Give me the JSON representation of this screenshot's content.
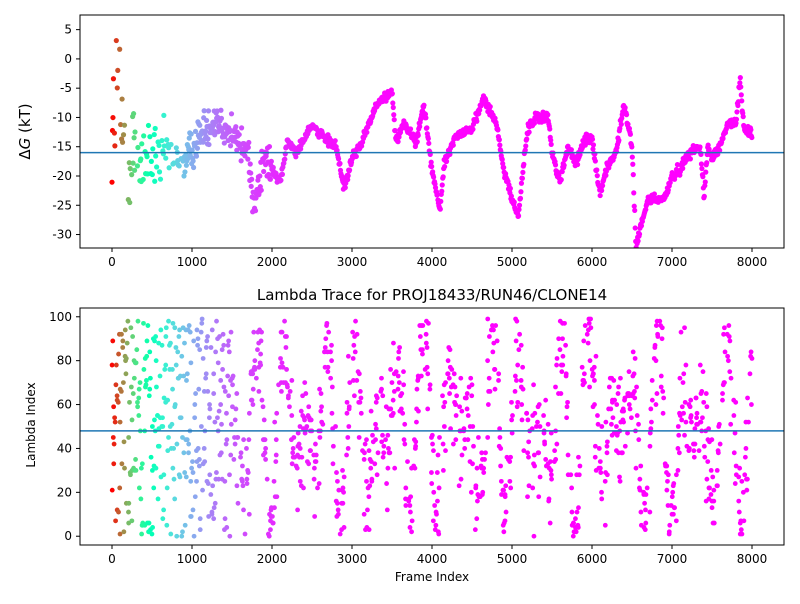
{
  "chart_data": [
    {
      "type": "scatter",
      "title": "",
      "xlabel": "",
      "ylabel": "ΔG (kT)",
      "xlim": [
        -400,
        8400
      ],
      "ylim": [
        -32.3,
        7.5
      ],
      "xticks": [
        0,
        1000,
        2000,
        3000,
        4000,
        5000,
        6000,
        7000,
        8000
      ],
      "yticks": [
        5,
        0,
        -5,
        -10,
        -15,
        -20,
        -25,
        -30
      ],
      "hline": -16,
      "hline_color": "#1f77b4",
      "colormap": "rainbow",
      "color_by": "frame index (late = violet, early = red)",
      "n_frames": 8000,
      "series": [
        {
          "x": [
            0,
            50,
            100,
            200,
            300,
            500,
            700,
            900,
            1100,
            1300,
            1500,
            1700,
            1780,
            1900,
            2100,
            2200,
            2300,
            2500,
            2600,
            2800,
            2900,
            3000,
            3100,
            3300,
            3500,
            3550,
            3650,
            3800,
            3900,
            4000,
            4100,
            4150,
            4300,
            4500,
            4650,
            4800,
            4900,
            5000,
            5080,
            5150,
            5200,
            5300,
            5450,
            5500,
            5600,
            5700,
            5800,
            5900,
            6000,
            6100,
            6200,
            6300,
            6400,
            6500,
            6550,
            6700,
            6800,
            6900,
            7000,
            7100,
            7200,
            7350,
            7400,
            7450,
            7500,
            7600,
            7700,
            7800,
            7850,
            7900,
            8000
          ],
          "y": [
            -10,
            0,
            -10,
            -14,
            -16,
            -17,
            -16,
            -18,
            -13,
            -10,
            -13,
            -16,
            -25,
            -17,
            -21,
            -14,
            -16,
            -11,
            -13,
            -15,
            -22,
            -17,
            -15,
            -8,
            -5.5,
            -14,
            -11,
            -14,
            -8,
            -19,
            -26,
            -18,
            -13,
            -12,
            -6.5,
            -11,
            -19,
            -24,
            -27,
            -17,
            -12,
            -10,
            -10,
            -16,
            -21,
            -15,
            -18,
            -14,
            -13.5,
            -23,
            -18,
            -16,
            -7.7,
            -15,
            -32,
            -24,
            -24,
            -24,
            -20,
            -19,
            -16,
            -15,
            -23,
            -15,
            -17,
            -15,
            -11,
            -11,
            -3.5,
            -12,
            -12.5
          ]
        }
      ]
    },
    {
      "type": "scatter",
      "title": "Lambda Trace for PROJ18433/RUN46/CLONE14",
      "xlabel": "Frame Index",
      "ylabel": "Lambda Index",
      "xlim": [
        -400,
        8400
      ],
      "ylim": [
        -4,
        104
      ],
      "xticks": [
        0,
        1000,
        2000,
        3000,
        4000,
        5000,
        6000,
        7000,
        8000
      ],
      "yticks": [
        0,
        20,
        40,
        60,
        80,
        100
      ],
      "hline": 48,
      "hline_color": "#1f77b4",
      "colormap": "rainbow",
      "color_by": "frame index (late = violet, early = red)",
      "n_frames": 8000,
      "range": [
        0,
        99
      ]
    }
  ]
}
